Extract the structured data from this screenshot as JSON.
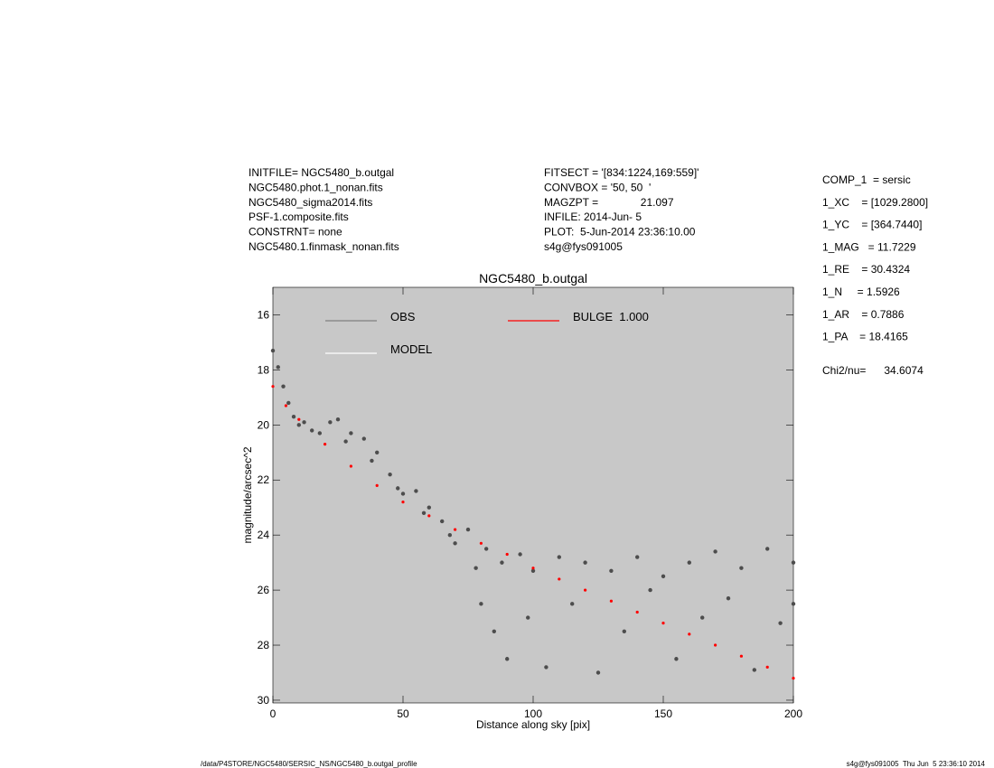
{
  "header": {
    "left": [
      "INITFILE= NGC5480_b.outgal",
      "NGC5480.phot.1_nonan.fits",
      "NGC5480_sigma2014.fits",
      "PSF-1.composite.fits",
      "CONSTRNT= none",
      "NGC5480.1.finmask_nonan.fits"
    ],
    "middle": [
      "FITSECT = '[834:1224,169:559]'",
      "CONVBOX = '50, 50  '",
      "MAGZPT =              21.097",
      "INFILE: 2014-Jun- 5",
      "PLOT:  5-Jun-2014 23:36:10.00",
      "s4g@fys091005"
    ],
    "right": [
      "COMP_1  = sersic",
      "1_XC    = [1029.2800]",
      "1_YC    = [364.7440]",
      "1_MAG   = 11.7229",
      "1_RE    = 30.4324",
      "1_N     = 1.5926",
      "1_AR    = 0.7886",
      "1_PA    = 18.4165"
    ],
    "chi": "Chi2/nu=      34.6074"
  },
  "footer": {
    "left": "/data/P4STORE/NGC5480/SERSIC_NS/NGC5480_b.outgal_profile",
    "right": "s4g@fys091005  Thu Jun  5 23:36:10 2014"
  },
  "chart_data": {
    "type": "scatter",
    "title": "NGC5480_b.outgal",
    "x_label": "Distance along sky [pix]",
    "y_label": "magnitude/arcsec^2",
    "xlim": [
      0,
      200
    ],
    "xticks": [
      0,
      50,
      100,
      150,
      200
    ],
    "ylim": [
      15,
      30.1
    ],
    "yticks": [
      16,
      18,
      20,
      22,
      24,
      26,
      28,
      30
    ],
    "y_inverted": true,
    "background": "#c8c8c8",
    "series": [
      {
        "name": "OBS",
        "color": "#4d4d4d",
        "x": [
          0,
          2,
          4,
          6,
          8,
          10,
          12,
          15,
          18,
          22,
          25,
          28,
          30,
          35,
          38,
          40,
          45,
          48,
          50,
          55,
          58,
          60,
          65,
          68,
          70,
          75,
          78,
          80,
          82,
          85,
          88,
          90,
          95,
          98,
          100,
          105,
          110,
          115,
          120,
          125,
          130,
          135,
          140,
          145,
          150,
          155,
          160,
          165,
          170,
          175,
          180,
          185,
          190,
          195,
          200,
          200
        ],
        "y": [
          17.3,
          17.9,
          18.6,
          19.2,
          19.7,
          20.0,
          19.9,
          20.2,
          20.3,
          19.9,
          19.8,
          20.6,
          20.3,
          20.5,
          21.3,
          21.0,
          21.8,
          22.3,
          22.5,
          22.4,
          23.2,
          23.0,
          23.5,
          24.0,
          24.3,
          23.8,
          25.2,
          26.5,
          24.5,
          27.5,
          25.0,
          28.5,
          24.7,
          27.0,
          25.3,
          28.8,
          24.8,
          26.5,
          25.0,
          29.0,
          25.3,
          27.5,
          24.8,
          26.0,
          25.5,
          28.5,
          25.0,
          27.0,
          24.6,
          26.3,
          25.2,
          28.9,
          24.5,
          27.2,
          25.0,
          26.5
        ]
      },
      {
        "name": "MODEL",
        "color": "#ffffff",
        "x": [],
        "y": []
      },
      {
        "name": "BULGE  1.000",
        "color": "#ff0000",
        "x": [
          0,
          5,
          10,
          20,
          30,
          40,
          50,
          60,
          70,
          80,
          90,
          100,
          110,
          120,
          130,
          140,
          150,
          160,
          170,
          180,
          190,
          200
        ],
        "y": [
          18.6,
          19.3,
          19.8,
          20.7,
          21.5,
          22.2,
          22.8,
          23.3,
          23.8,
          24.3,
          24.7,
          25.2,
          25.6,
          26.0,
          26.4,
          26.8,
          27.2,
          27.6,
          28.0,
          28.4,
          28.8,
          29.2
        ]
      }
    ]
  }
}
